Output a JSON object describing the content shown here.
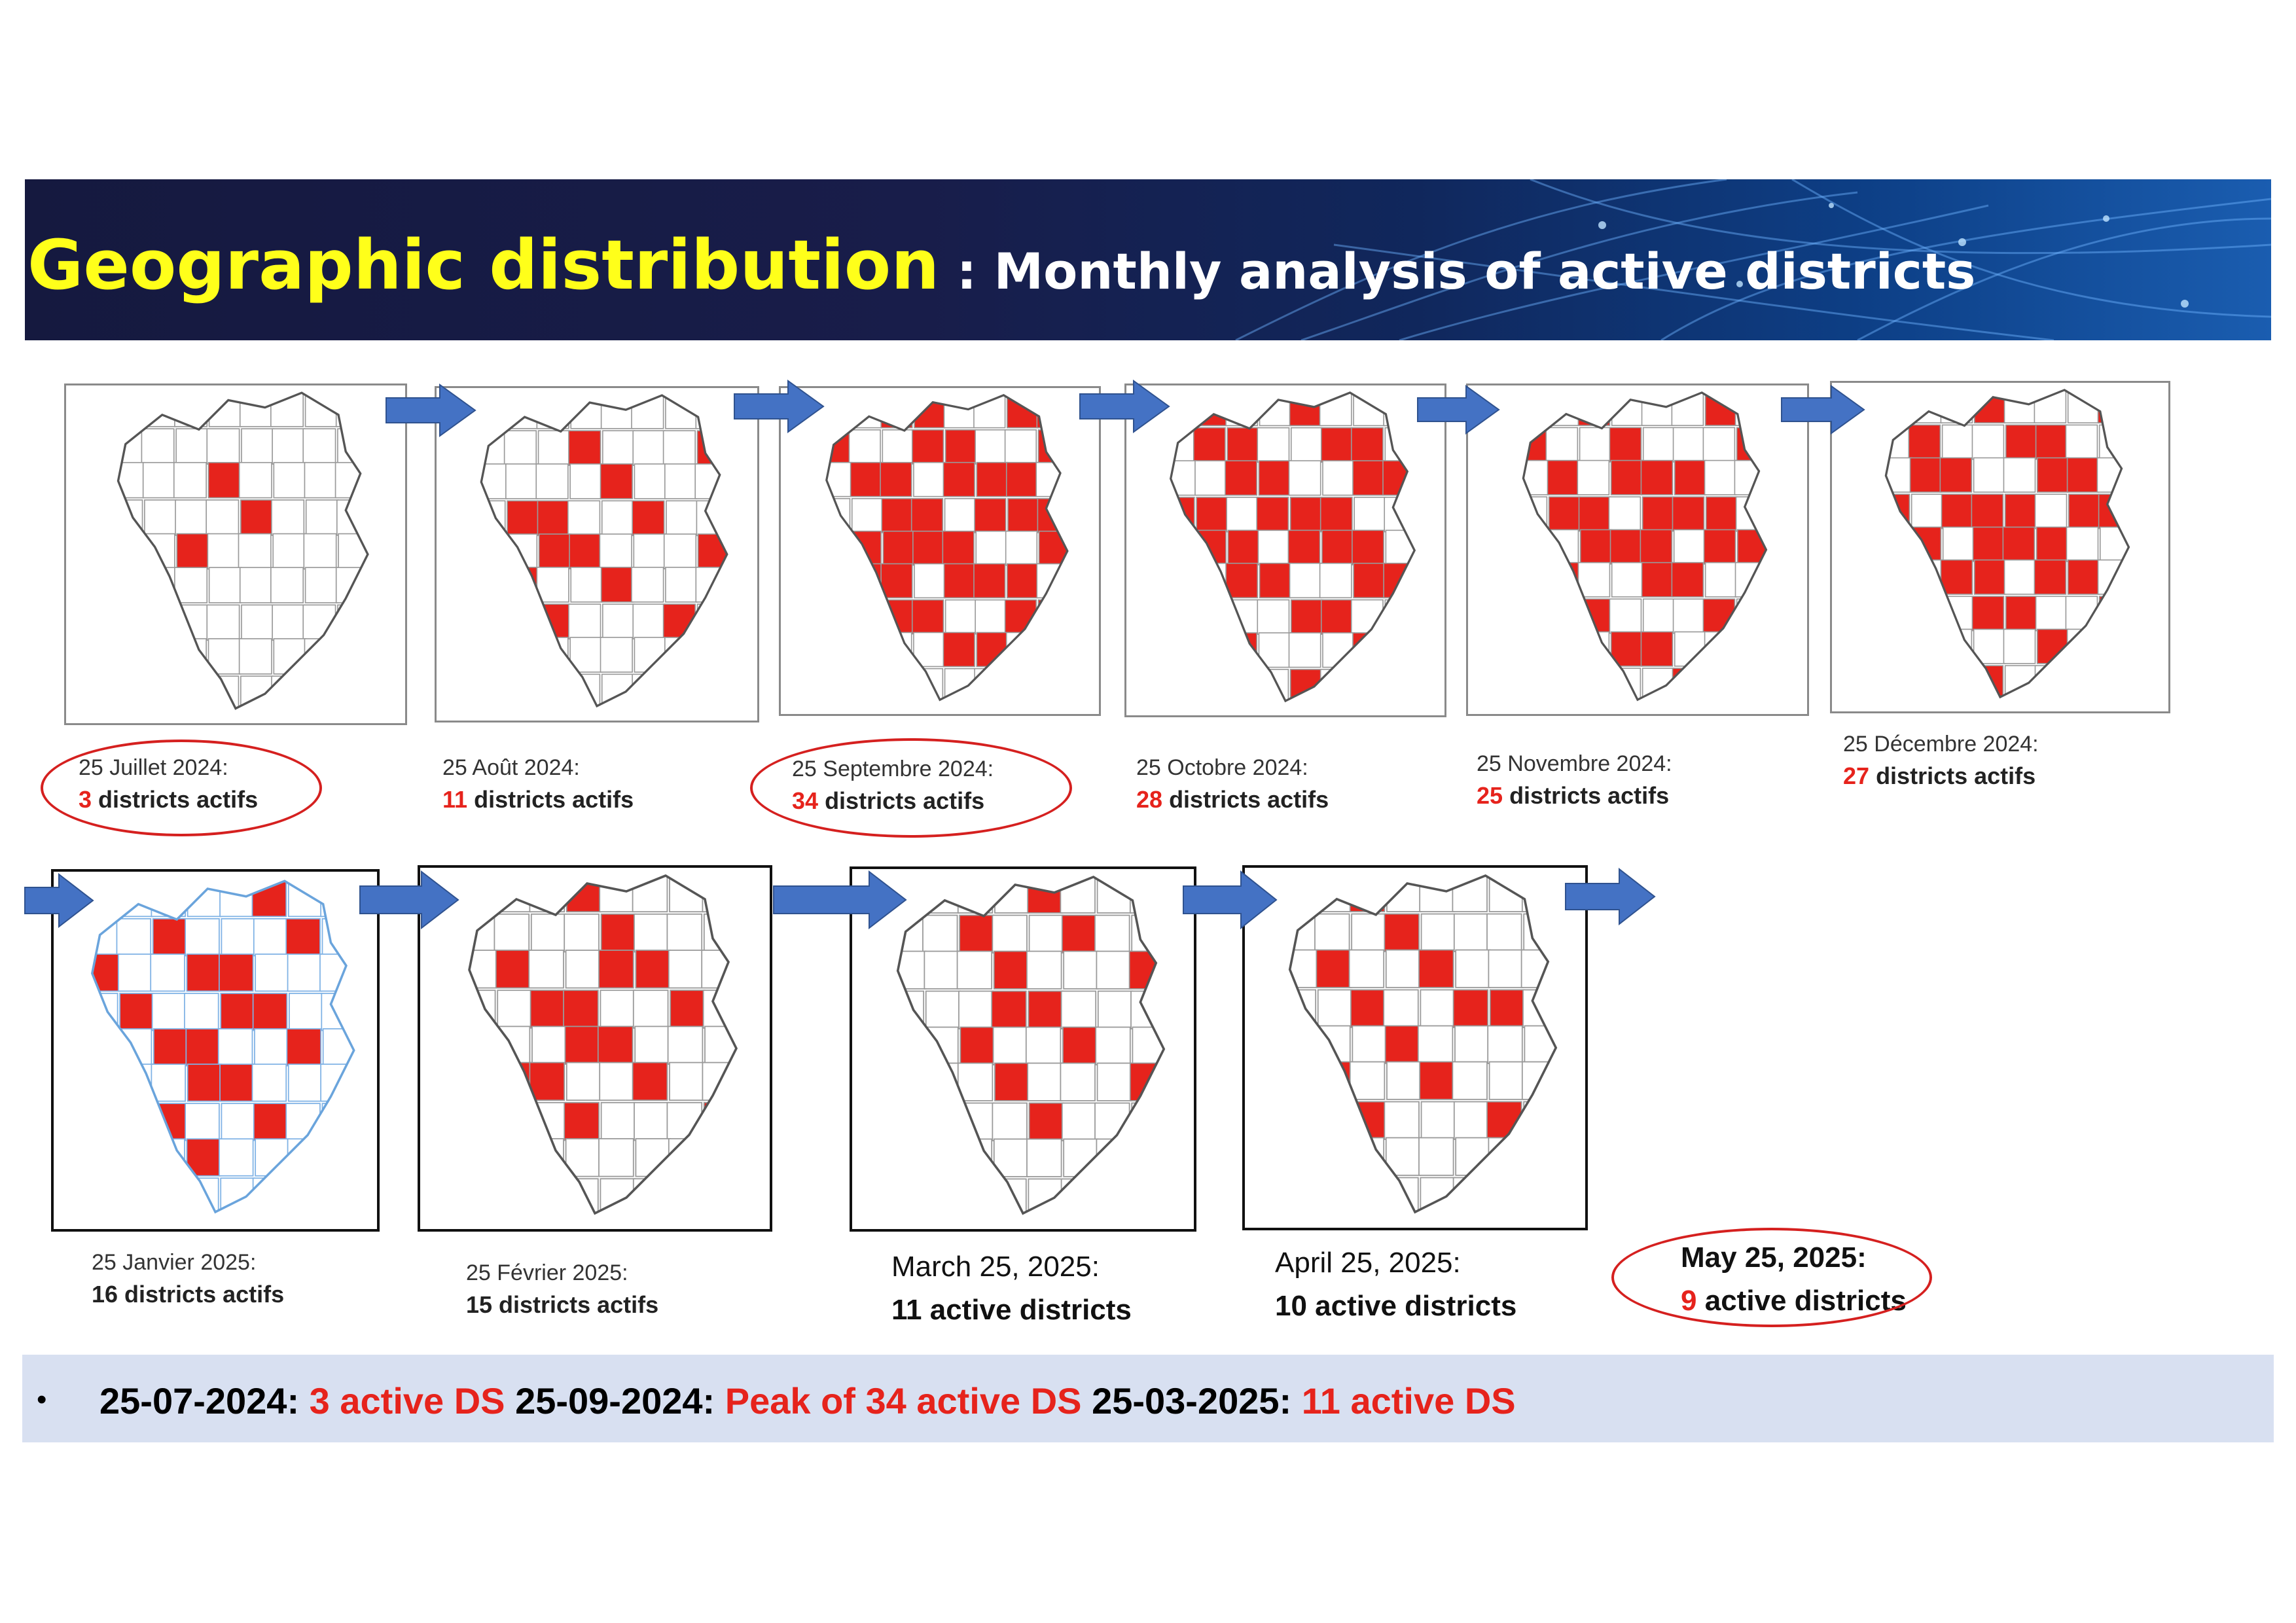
{
  "header": {
    "title_main": "Geographic distribution",
    "title_separator": " : ",
    "title_sub": "Monthly analysis of active districts"
  },
  "colors": {
    "active_district": "#e6231c",
    "title_yellow": "#ffff1a",
    "arrow_blue": "#4472c4",
    "summary_bg": "#d8e0f1"
  },
  "snapshots": [
    {
      "date": "25 Juillet 2024:",
      "count": "3",
      "label": "districts actifs",
      "active": 3
    },
    {
      "date": "25 Août 2024:",
      "count": "11",
      "label": "districts actifs",
      "active": 11
    },
    {
      "date": "25 Septembre 2024:",
      "count": "34",
      "label": "districts actifs",
      "active": 34
    },
    {
      "date": "25 Octobre 2024:",
      "count": "28",
      "label": "districts actifs",
      "active": 28
    },
    {
      "date": "25 Novembre 2024:",
      "count": "25",
      "label": "districts actifs",
      "active": 25
    },
    {
      "date": "25 Décembre 2024:",
      "count": "27",
      "label": "districts actifs",
      "active": 27
    },
    {
      "date": "25 Janvier  2025:",
      "count": "",
      "label": "16 districts actifs",
      "active": 16
    },
    {
      "date": "25 Février 2025:",
      "count": "",
      "label": "15 districts actifs",
      "active": 15
    },
    {
      "date": "March 25, 2025:",
      "count": "",
      "label": "11 active districts",
      "active": 11
    },
    {
      "date": "April 25, 2025:",
      "count": "",
      "label": "10 active districts",
      "active": 10
    },
    {
      "date": "May 25, 2025:",
      "count": "9",
      "label": "active districts",
      "active": 9
    }
  ],
  "summary": {
    "bullet": "•",
    "d1": "25-07-2024:",
    "v1": "3 active DS",
    "d2": "25-09-2024:",
    "v2": "Peak of 34 active DS",
    "d3": "25-03-2025:",
    "v3": "11 active DS"
  }
}
